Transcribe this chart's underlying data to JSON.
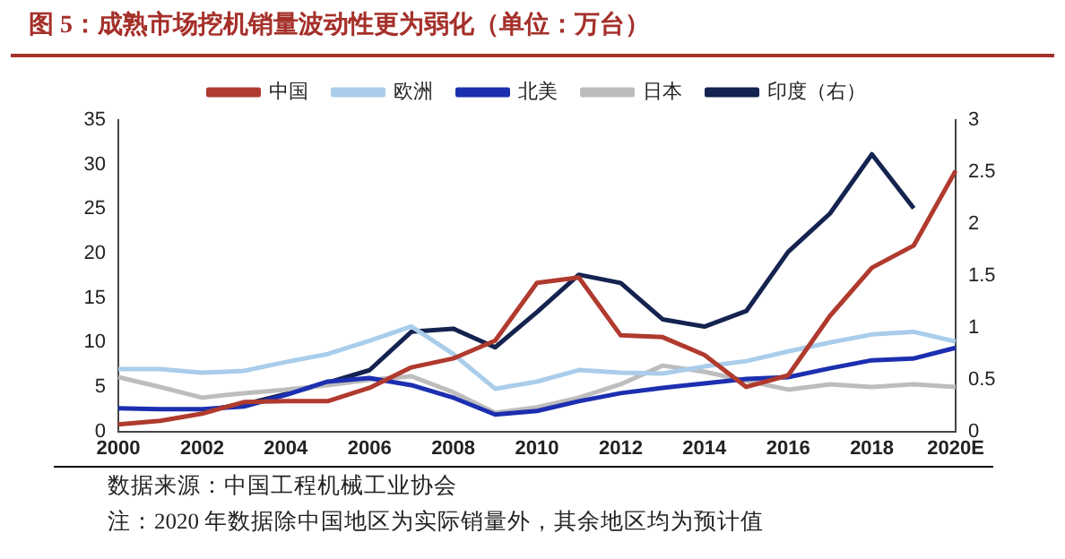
{
  "chart_data": {
    "type": "line",
    "title": "图 5：成熟市场挖机销量波动性更为弱化（单位：万台）",
    "categories": [
      "2000",
      null,
      "2002",
      null,
      "2004",
      null,
      "2006",
      null,
      "2008",
      null,
      "2010",
      null,
      "2012",
      null,
      "2014",
      null,
      "2016",
      null,
      "2018",
      null,
      "2020E"
    ],
    "series": [
      {
        "name": "中国",
        "color": "#b03a2e",
        "values": [
          0.8,
          1.2,
          2.0,
          3.3,
          3.4,
          3.4,
          4.9,
          7.2,
          8.2,
          10.2,
          16.7,
          17.3,
          10.8,
          10.6,
          8.6,
          5.0,
          6.3,
          13.0,
          18.4,
          20.9,
          29.3
        ]
      },
      {
        "name": "欧洲",
        "color": "#a9cdea",
        "values": [
          7.0,
          7.0,
          6.6,
          6.8,
          7.8,
          8.7,
          10.2,
          11.8,
          8.7,
          4.8,
          5.6,
          6.9,
          6.6,
          6.5,
          7.3,
          7.9,
          9.0,
          10.0,
          10.9,
          11.2,
          10.1
        ]
      },
      {
        "name": "北美",
        "color": "#1c2fb0",
        "values": [
          2.6,
          2.5,
          2.5,
          2.8,
          4.1,
          5.6,
          6.0,
          5.2,
          3.8,
          1.9,
          2.3,
          3.4,
          4.3,
          4.9,
          5.4,
          5.9,
          6.1,
          7.1,
          8.0,
          8.2,
          9.4
        ]
      },
      {
        "name": "日本",
        "color": "#bdbdbd",
        "values": [
          6.1,
          5.0,
          3.8,
          4.3,
          4.7,
          5.2,
          5.8,
          6.2,
          4.4,
          2.1,
          2.7,
          3.8,
          5.3,
          7.4,
          6.7,
          5.7,
          4.7,
          5.3,
          5.0,
          5.3,
          5.0
        ]
      },
      {
        "name": "印度（右）",
        "color": "#14234f",
        "axis": "y2",
        "values": [
          null,
          null,
          0.2,
          0.26,
          0.36,
          0.47,
          0.59,
          0.96,
          0.99,
          0.81,
          1.15,
          1.51,
          1.43,
          1.08,
          1.01,
          1.16,
          1.73,
          2.1,
          2.67,
          2.15,
          null
        ]
      }
    ],
    "ylim": [
      0,
      35
    ],
    "yticks": [
      0,
      5,
      10,
      15,
      20,
      25,
      30,
      35
    ],
    "y2lim": [
      0,
      3
    ],
    "y2ticks": [
      0,
      0.5,
      1,
      1.5,
      2,
      2.5,
      3
    ],
    "grid": false,
    "legend": "top",
    "marker": "none",
    "line_style": "solid",
    "annotations": [
      "数据来源：中国工程机械工业协会",
      "注：2020 年数据除中国地区为实际销量外，其余地区均为预计值"
    ]
  }
}
